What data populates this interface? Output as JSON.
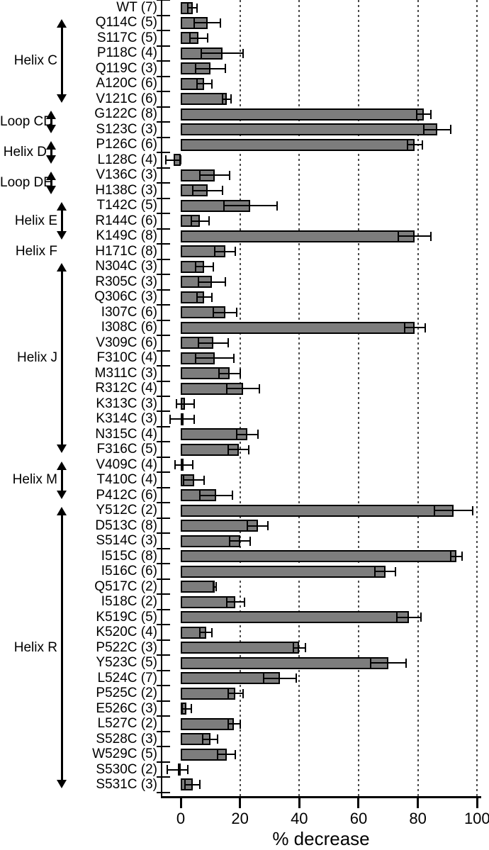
{
  "chart_data": {
    "type": "bar",
    "orientation": "horizontal",
    "title": "",
    "xlabel": "% decrease",
    "ylabel": "",
    "xlim": [
      0,
      100
    ],
    "xticks": [
      0,
      20,
      40,
      60,
      80,
      100
    ],
    "grid_values": [
      20,
      40,
      60,
      80,
      100
    ],
    "grid_style": "dashed-vertical",
    "bar_color": "#7d7d7d",
    "outline_color": "#000000",
    "error_bars": true,
    "rows": [
      {
        "label": "WT (7)",
        "value": 4,
        "error": 1.5
      },
      {
        "label": "Q114C (5)",
        "value": 9,
        "error": 4.5
      },
      {
        "label": "S117C (5)",
        "value": 6,
        "error": 3
      },
      {
        "label": "P118C (4)",
        "value": 14,
        "error": 7
      },
      {
        "label": "Q119C (3)",
        "value": 10,
        "error": 5
      },
      {
        "label": "A120C (6)",
        "value": 8,
        "error": 2.5
      },
      {
        "label": "V121C (6)",
        "value": 15.5,
        "error": 1.5
      },
      {
        "label": "G122C (8)",
        "value": 82,
        "error": 2.5
      },
      {
        "label": "S123C (3)",
        "value": 86.5,
        "error": 4.5
      },
      {
        "label": "P126C (6)",
        "value": 79,
        "error": 2.5
      },
      {
        "label": "L128C (4)",
        "value": -2.5,
        "error": 2.5
      },
      {
        "label": "V136C (3)",
        "value": 11.5,
        "error": 5
      },
      {
        "label": "H138C (3)",
        "value": 9,
        "error": 5
      },
      {
        "label": "T142C (5)",
        "value": 23.5,
        "error": 9
      },
      {
        "label": "R144C (6)",
        "value": 6.5,
        "error": 3
      },
      {
        "label": "K149C (8)",
        "value": 79,
        "error": 5.5
      },
      {
        "label": "H171C (8)",
        "value": 15,
        "error": 3.5
      },
      {
        "label": "N304C (3)",
        "value": 8,
        "error": 3
      },
      {
        "label": "R305C (3)",
        "value": 10.5,
        "error": 4.5
      },
      {
        "label": "Q306C (3)",
        "value": 8,
        "error": 2.5
      },
      {
        "label": "I307C (6)",
        "value": 15,
        "error": 4
      },
      {
        "label": "I308C (6)",
        "value": 79,
        "error": 3.5
      },
      {
        "label": "V309C (6)",
        "value": 11,
        "error": 5
      },
      {
        "label": "F310C (4)",
        "value": 11.5,
        "error": 6.5
      },
      {
        "label": "M311C (3)",
        "value": 16.5,
        "error": 3.5
      },
      {
        "label": "R312C (4)",
        "value": 21,
        "error": 5.5
      },
      {
        "label": "K313C (3)",
        "value": 1.5,
        "error": 3
      },
      {
        "label": "K314C (3)",
        "value": 0.5,
        "error": 4
      },
      {
        "label": "N315C (4)",
        "value": 22.5,
        "error": 3.5
      },
      {
        "label": "F316C (5)",
        "value": 19.5,
        "error": 3.5
      },
      {
        "label": "V409C (4)",
        "value": 1,
        "error": 3
      },
      {
        "label": "T410C (4)",
        "value": 4.5,
        "error": 3.5
      },
      {
        "label": "P412C (6)",
        "value": 12,
        "error": 5.5
      },
      {
        "label": "Y512C (2)",
        "value": 92,
        "error": 6.5
      },
      {
        "label": "D513C (8)",
        "value": 26,
        "error": 3.5
      },
      {
        "label": "S514C (3)",
        "value": 20,
        "error": 3.5
      },
      {
        "label": "I515C (8)",
        "value": 93,
        "error": 2
      },
      {
        "label": "I516C (6)",
        "value": 69,
        "error": 3.5
      },
      {
        "label": "Q517C (2)",
        "value": 11.5,
        "error": 0.5
      },
      {
        "label": "I518C (2)",
        "value": 18.5,
        "error": 3
      },
      {
        "label": "K519C (5)",
        "value": 77,
        "error": 4
      },
      {
        "label": "K520C (4)",
        "value": 8.5,
        "error": 2
      },
      {
        "label": "P522C (3)",
        "value": 40,
        "error": 2
      },
      {
        "label": "Y523C (5)",
        "value": 70,
        "error": 6
      },
      {
        "label": "L524C (7)",
        "value": 33.5,
        "error": 5.5
      },
      {
        "label": "P525C (2)",
        "value": 18.5,
        "error": 2.5
      },
      {
        "label": "E526C (3)",
        "value": 2,
        "error": 1.5
      },
      {
        "label": "L527C (2)",
        "value": 18,
        "error": 2
      },
      {
        "label": "S528C (3)",
        "value": 10,
        "error": 2.5
      },
      {
        "label": "W529C (5)",
        "value": 15.5,
        "error": 3
      },
      {
        "label": "S530C (2)",
        "value": -1,
        "error": 3.5
      },
      {
        "label": "S531C (3)",
        "value": 4,
        "error": 2.5
      }
    ],
    "groups": [
      {
        "label": "Helix C",
        "start_row": 2,
        "end_row": 7,
        "arrow": true
      },
      {
        "label": "Loop CD",
        "start_row": 8,
        "end_row": 9,
        "arrow": true
      },
      {
        "label": "Helix D",
        "start_row": 10,
        "end_row": 11,
        "arrow": true
      },
      {
        "label": "Loop DE",
        "start_row": 12,
        "end_row": 13,
        "arrow": true
      },
      {
        "label": "Helix E",
        "start_row": 14,
        "end_row": 16,
        "arrow": true
      },
      {
        "label": "Helix F",
        "start_row": 17,
        "end_row": 17,
        "arrow": false
      },
      {
        "label": "Helix J",
        "start_row": 18,
        "end_row": 30,
        "arrow": true
      },
      {
        "label": "Helix M",
        "start_row": 31,
        "end_row": 33,
        "arrow": true
      },
      {
        "label": "Helix R",
        "start_row": 34,
        "end_row": 52,
        "arrow": true
      }
    ]
  }
}
